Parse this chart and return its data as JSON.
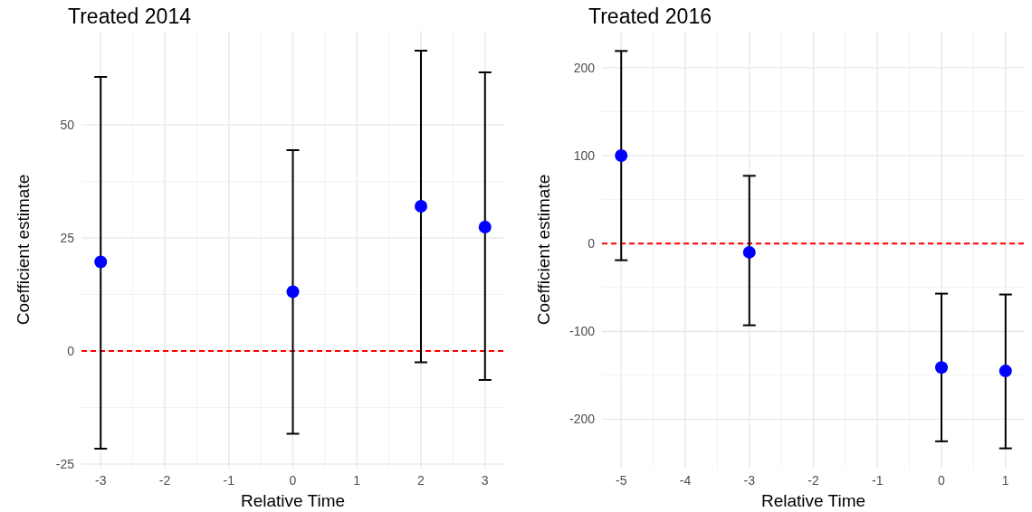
{
  "chart_data": [
    {
      "type": "scatter",
      "title": "Treated 2014",
      "xlabel": "Relative Time",
      "ylabel": "Coefficient estimate",
      "x": [
        -3,
        0,
        2,
        3
      ],
      "values": [
        19.7,
        13.1,
        32.0,
        27.4
      ],
      "errors": [
        [
          -21.6,
          60.6
        ],
        [
          -18.3,
          44.4
        ],
        [
          -2.5,
          66.4
        ],
        [
          -6.4,
          61.6
        ]
      ],
      "color": "#0000ff",
      "marker": "circle",
      "xlim": [
        -3.3,
        3.3
      ],
      "xticks": [
        -3,
        -2,
        -1,
        0,
        1,
        2,
        3
      ],
      "ylim": [
        -26,
        70.8
      ],
      "yticks": [
        -25,
        0,
        25,
        50
      ],
      "grid": true,
      "ref_lines": [
        {
          "axis": "y",
          "value": 0,
          "color": "#ff0000",
          "line_style": "dashed"
        }
      ]
    },
    {
      "type": "scatter",
      "title": "Treated 2016",
      "xlabel": "Relative Time",
      "ylabel": "Coefficient estimate",
      "x": [
        -5,
        -3,
        0,
        1
      ],
      "values": [
        100,
        -10,
        -141,
        -145
      ],
      "errors": [
        [
          -19,
          219
        ],
        [
          -93,
          77
        ],
        [
          -225,
          -57
        ],
        [
          -233,
          -58
        ]
      ],
      "color": "#0000ff",
      "marker": "circle",
      "xlim": [
        -5.3,
        1.3
      ],
      "xticks": [
        -5,
        -4,
        -3,
        -2,
        -1,
        0,
        1
      ],
      "ylim": [
        -256,
        242
      ],
      "yticks": [
        -200,
        -100,
        0,
        100,
        200
      ],
      "grid": true,
      "ref_lines": [
        {
          "axis": "y",
          "value": 0,
          "color": "#ff0000",
          "line_style": "dashed"
        }
      ]
    }
  ]
}
